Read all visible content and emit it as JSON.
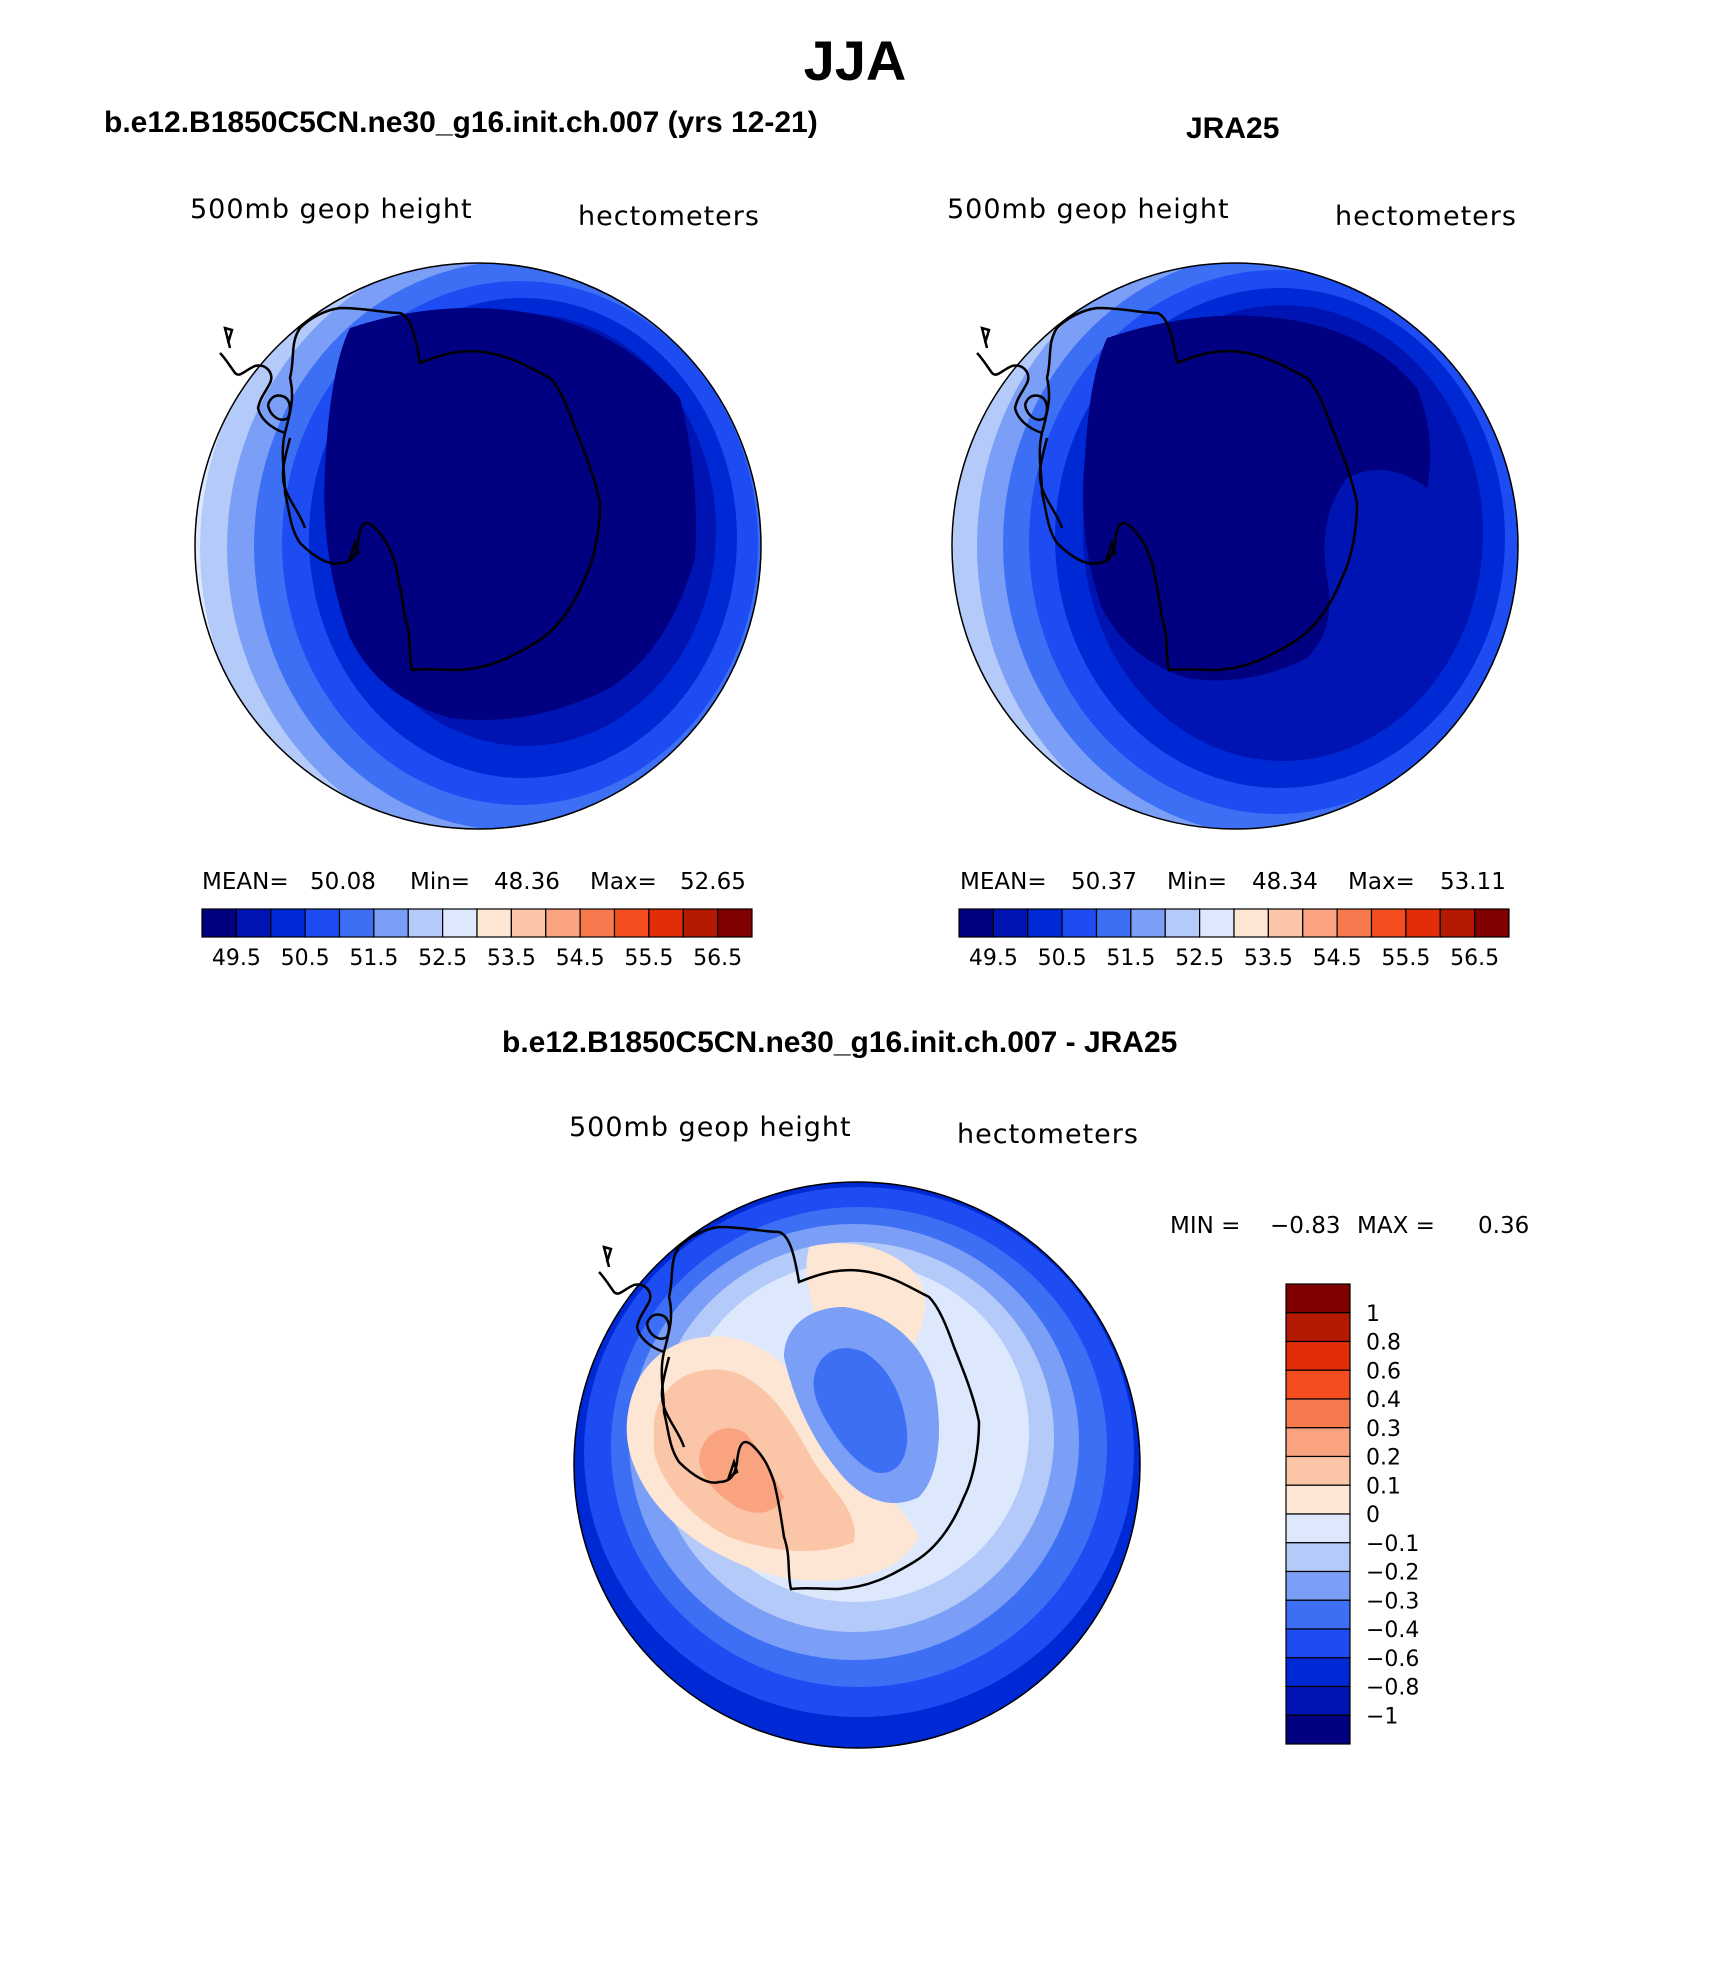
{
  "page": {
    "season_title": "JJA"
  },
  "colors": {
    "mean_scale": [
      "#000080",
      "#0014b4",
      "#0029d6",
      "#1d4cf2",
      "#3d6ff5",
      "#7b9ff7",
      "#b4caf9",
      "#dde8fd",
      "#fde6d3",
      "#fbc6a8",
      "#f9a381",
      "#f77a4f",
      "#f44d1e",
      "#e12e08",
      "#b31a01",
      "#800000"
    ],
    "diff_scale": [
      "#000080",
      "#0014b4",
      "#0029d6",
      "#1d4cf2",
      "#3d6ff5",
      "#7b9ff7",
      "#b4caf9",
      "#dde8fd",
      "#fde6d3",
      "#fbc6a8",
      "#f9a381",
      "#f77a4f",
      "#f44d1e",
      "#e12e08",
      "#b31a01",
      "#800000"
    ]
  },
  "chart_data": [
    {
      "type": "heatmap",
      "title": "b.e12.B1850C5CN.ne30_g16.init.ch.007 (yrs 12-21)",
      "left_label": "500mb geop height",
      "right_label": "hectometers",
      "stats": {
        "mean_label": "MEAN=",
        "mean": "50.08",
        "min_label": "Min=",
        "min": "48.36",
        "max_label": "Max=",
        "max": "52.65"
      },
      "colorbar_ticks": [
        "49.5",
        "50.5",
        "51.5",
        "52.5",
        "53.5",
        "54.5",
        "55.5",
        "56.5"
      ],
      "contour_levels": [
        49.5,
        50.0,
        50.5,
        51.0,
        51.5,
        52.0,
        52.5,
        53.0,
        53.5,
        54.0,
        54.5,
        55.0,
        55.5,
        56.0,
        56.5
      ]
    },
    {
      "type": "heatmap",
      "title": "JRA25",
      "left_label": "500mb geop height",
      "right_label": "hectometers",
      "stats": {
        "mean_label": "MEAN=",
        "mean": "50.37",
        "min_label": "Min=",
        "min": "48.34",
        "max_label": "Max=",
        "max": "53.11"
      },
      "colorbar_ticks": [
        "49.5",
        "50.5",
        "51.5",
        "52.5",
        "53.5",
        "54.5",
        "55.5",
        "56.5"
      ],
      "contour_levels": [
        49.5,
        50.0,
        50.5,
        51.0,
        51.5,
        52.0,
        52.5,
        53.0,
        53.5,
        54.0,
        54.5,
        55.0,
        55.5,
        56.0,
        56.5
      ]
    },
    {
      "type": "heatmap",
      "title": "b.e12.B1850C5CN.ne30_g16.init.ch.007 - JRA25",
      "left_label": "500mb geop height",
      "right_label": "hectometers",
      "stats": {
        "min_label": "MIN =",
        "min": "−0.83",
        "max_label": "MAX =",
        "max": "0.36"
      },
      "colorbar_ticks": [
        "1",
        "0.8",
        "0.6",
        "0.4",
        "0.3",
        "0.2",
        "0.1",
        "0",
        "−0.1",
        "−0.2",
        "−0.3",
        "−0.4",
        "−0.6",
        "−0.8",
        "−1"
      ]
    }
  ]
}
